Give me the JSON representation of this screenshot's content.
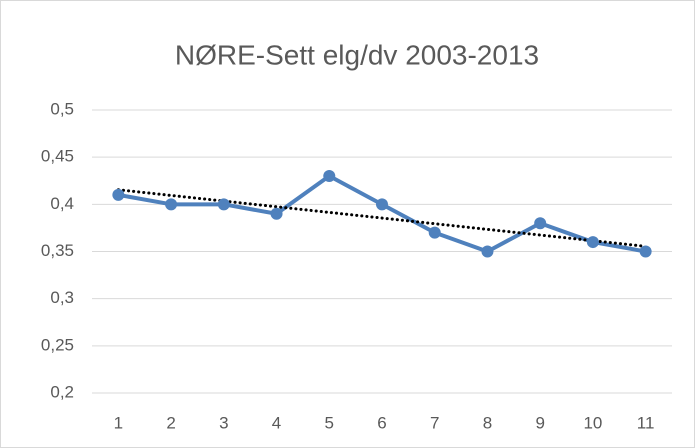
{
  "chart_data": {
    "type": "line",
    "title": "NØRE-Sett elg/dv 2003-2013",
    "categories": [
      "1",
      "2",
      "3",
      "4",
      "5",
      "6",
      "7",
      "8",
      "9",
      "10",
      "11"
    ],
    "values": [
      0.41,
      0.4,
      0.4,
      0.39,
      0.43,
      0.4,
      0.37,
      0.35,
      0.38,
      0.36,
      0.35
    ],
    "color": "#4f81bd",
    "ylim": [
      0.2,
      0.5
    ],
    "yticks": [
      {
        "value": 0.2,
        "label": "0,2"
      },
      {
        "value": 0.25,
        "label": "0,25"
      },
      {
        "value": 0.3,
        "label": "0,3"
      },
      {
        "value": 0.35,
        "label": "0,35"
      },
      {
        "value": 0.4,
        "label": "0,4"
      },
      {
        "value": 0.45,
        "label": "0,45"
      },
      {
        "value": 0.5,
        "label": "0,5"
      }
    ],
    "grid": true,
    "trendline": "linear"
  }
}
